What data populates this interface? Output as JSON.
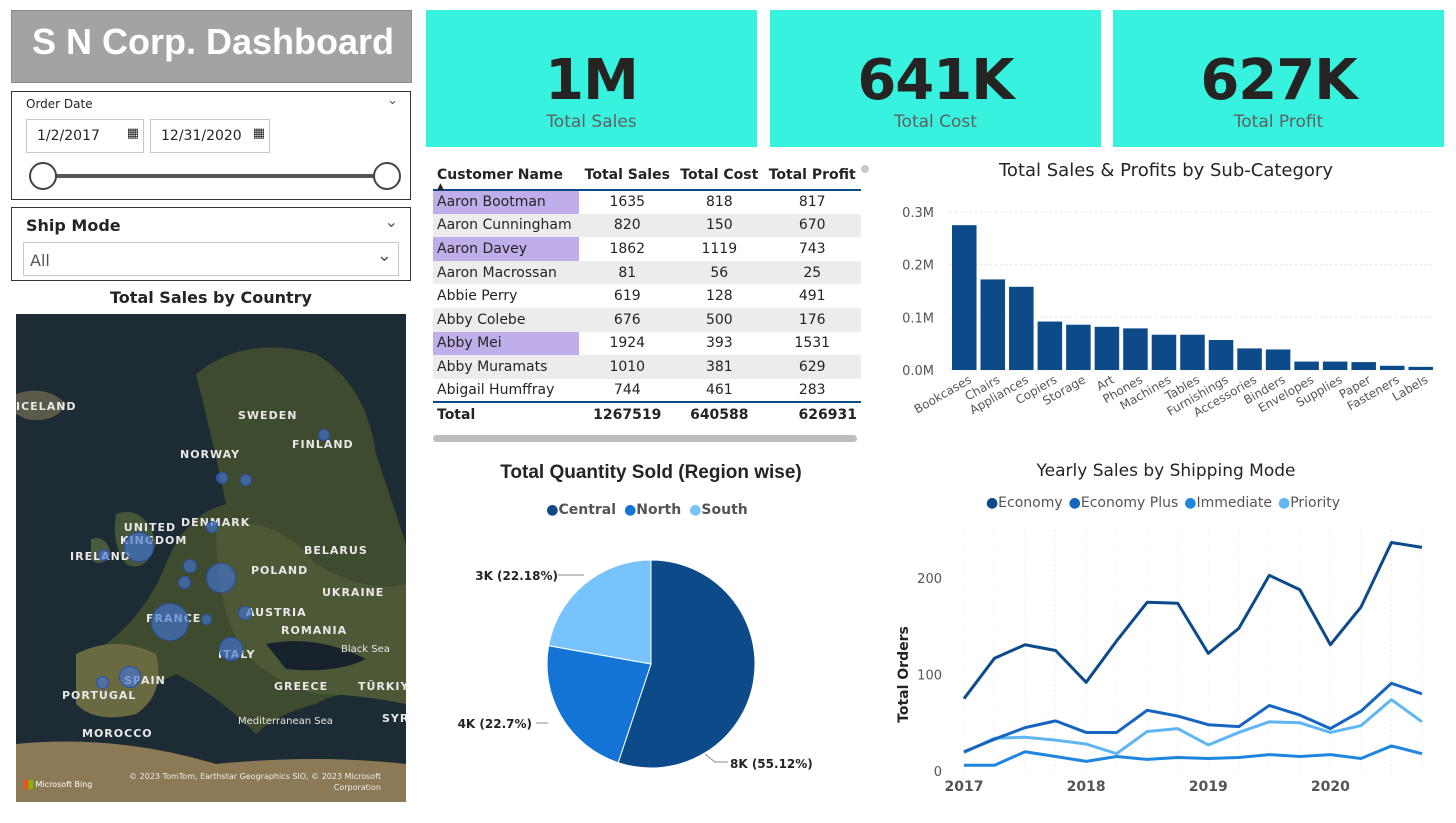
{
  "dashboard_title": "S N Corp. Dashboard",
  "order_date": {
    "label": "Order Date",
    "start": "1/2/2017",
    "end": "12/31/2020",
    "range_fraction": [
      0,
      1
    ]
  },
  "ship_mode": {
    "label": "Ship Mode",
    "value": "All"
  },
  "kpis": [
    {
      "value": "1M",
      "label": "Total Sales"
    },
    {
      "value": "641K",
      "label": "Total Cost"
    },
    {
      "value": "627K",
      "label": "Total Profit"
    }
  ],
  "table": {
    "headers": [
      "Customer Name",
      "Total Sales",
      "Total Cost",
      "Total Profit"
    ],
    "rows": [
      [
        "Aaron Bootman",
        "1635",
        "818",
        "817"
      ],
      [
        "Aaron Cunningham",
        "820",
        "150",
        "670"
      ],
      [
        "Aaron Davey",
        "1862",
        "1119",
        "743"
      ],
      [
        "Aaron Macrossan",
        "81",
        "56",
        "25"
      ],
      [
        "Abbie Perry",
        "619",
        "128",
        "491"
      ],
      [
        "Abby Colebe",
        "676",
        "500",
        "176"
      ],
      [
        "Abby Mei",
        "1924",
        "393",
        "1531"
      ],
      [
        "Abby Muramats",
        "1010",
        "381",
        "629"
      ],
      [
        "Abigail Humffray",
        "744",
        "461",
        "283"
      ]
    ],
    "highlighted_rows": [
      0,
      2,
      6
    ],
    "total": [
      "Total",
      "1267519",
      "640588",
      "626931"
    ]
  },
  "map": {
    "title": "Total Sales by Country",
    "labels": [
      "ICELAND",
      "SWEDEN",
      "FINLAND",
      "NORWAY",
      "UNITED KINGDOM",
      "DENMARK",
      "IRELAND",
      "BELARUS",
      "POLAND",
      "UKRAINE",
      "FRANCE",
      "AUSTRIA",
      "ROMANIA",
      "ITALY",
      "Black Sea",
      "SPAIN",
      "PORTUGAL",
      "GREECE",
      "TÜRKIYE",
      "Mediterranean Sea",
      "SYR",
      "MOROCCO"
    ],
    "attribution": "© 2023 TomTom, Earthstar Geographics SIO, © 2023 Microsoft Corporation",
    "bing": "Microsoft Bing"
  },
  "bar_chart": {
    "title": "Total Sales & Profits by Sub-Category",
    "y_ticks": [
      "0.3M",
      "0.2M",
      "0.1M",
      "0.0M"
    ],
    "chart_data": {
      "type": "bar",
      "categories": [
        "Bookcases",
        "Chairs",
        "Appliances",
        "Copiers",
        "Storage",
        "Art",
        "Phones",
        "Machines",
        "Tables",
        "Furnishings",
        "Accessories",
        "Binders",
        "Envelopes",
        "Supplies",
        "Paper",
        "Fasteners",
        "Labels"
      ],
      "values": [
        275000,
        172000,
        158000,
        92000,
        86000,
        82000,
        79000,
        67000,
        67000,
        57000,
        41000,
        39000,
        16000,
        16000,
        15000,
        8000,
        6000
      ],
      "ylim": [
        0,
        300000
      ],
      "color": "#0d4a8a"
    }
  },
  "pie_chart": {
    "title": "Total Quantity Sold (Region wise)",
    "chart_data": {
      "type": "pie",
      "labels": [
        "Central",
        "North",
        "South"
      ],
      "values": [
        55.12,
        22.7,
        22.18
      ],
      "slice_labels": [
        "8K (55.12%)",
        "4K (22.7%)",
        "3K (22.18%)"
      ],
      "colors": [
        "#0d4a8a",
        "#1474d6",
        "#77c3fb"
      ]
    }
  },
  "line_chart": {
    "title": "Yearly Sales by Shipping Mode",
    "ylabel": "Total Orders",
    "y_ticks": [
      "200",
      "100",
      "0"
    ],
    "x_ticks": [
      "2017",
      "2018",
      "2019",
      "2020"
    ],
    "chart_data": {
      "type": "line",
      "x": [
        "2017 Q1",
        "2017 Q2",
        "2017 Q3",
        "2017 Q4",
        "2018 Q1",
        "2018 Q2",
        "2018 Q3",
        "2018 Q4",
        "2019 Q1",
        "2019 Q2",
        "2019 Q3",
        "2019 Q4",
        "2020 Q1",
        "2020 Q2",
        "2020 Q3",
        "2020 Q4"
      ],
      "ylim": [
        0,
        250
      ],
      "series": [
        {
          "name": "Economy",
          "color": "#0d4a8a",
          "values": [
            75,
            117,
            131,
            125,
            92,
            135,
            175,
            174,
            122,
            148,
            203,
            188,
            131,
            170,
            237,
            232
          ]
        },
        {
          "name": "Economy Plus",
          "color": "#1665c0",
          "values": [
            20,
            33,
            45,
            52,
            40,
            40,
            63,
            57,
            48,
            46,
            68,
            58,
            44,
            62,
            91,
            80
          ]
        },
        {
          "name": "Immediate",
          "color": "#1f86e0",
          "values": [
            6,
            6,
            20,
            15,
            10,
            15,
            12,
            14,
            13,
            14,
            17,
            15,
            17,
            13,
            26,
            18
          ]
        },
        {
          "name": "Priority",
          "color": "#5fb6f2",
          "values": [
            19,
            34,
            35,
            32,
            28,
            18,
            41,
            44,
            27,
            40,
            51,
            50,
            40,
            47,
            74,
            51
          ]
        }
      ]
    }
  }
}
